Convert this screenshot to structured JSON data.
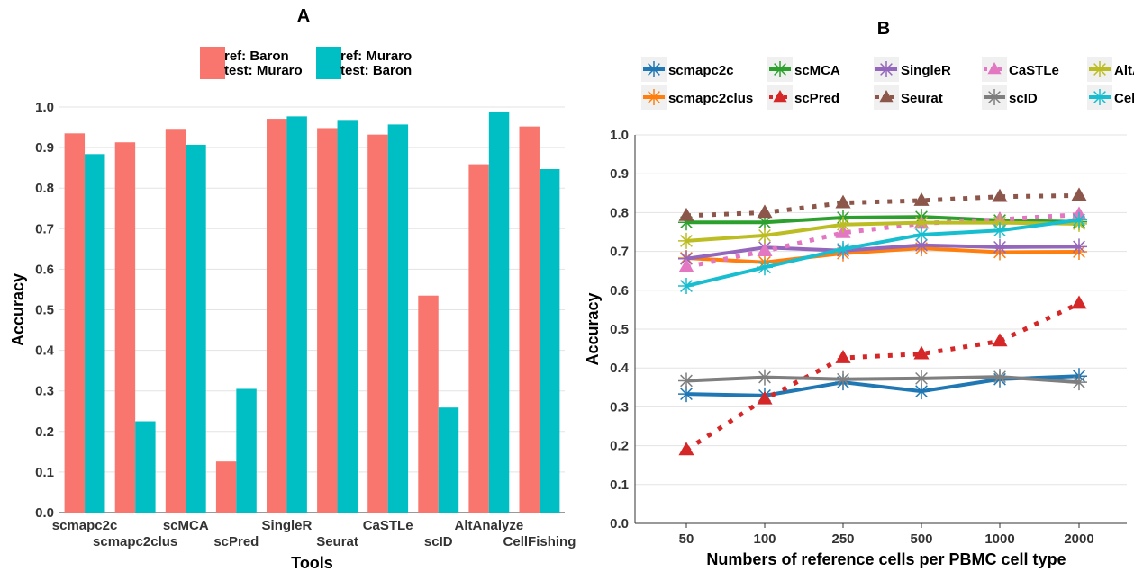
{
  "colors": {
    "baron_muraro": "#F8766D",
    "muraro_baron": "#00BFC4",
    "grid": "#e3e3e3",
    "axis": "#333333"
  },
  "chart_data": [
    {
      "type": "bar",
      "panel": "A",
      "xlabel": "Tools",
      "ylabel": "Accuracy",
      "ylim": [
        0,
        1.0
      ],
      "yticks": [
        "0.0",
        "0.1",
        "0.2",
        "0.3",
        "0.4",
        "0.5",
        "0.6",
        "0.7",
        "0.8",
        "0.9",
        "1.0"
      ],
      "grid": true,
      "legend_position": "top",
      "categories": [
        "scmapc2c",
        "scmapc2clus",
        "scMCA",
        "scPred",
        "SingleR",
        "Seurat",
        "CaSTLe",
        "scID",
        "AltAnalyze",
        "CellFishing"
      ],
      "series": [
        {
          "name": "ref: Baron test: Muraro",
          "label_line1": "ref: Baron",
          "label_line2": "test: Muraro",
          "color": "#F8766D",
          "values": [
            0.935,
            0.913,
            0.944,
            0.126,
            0.971,
            0.948,
            0.932,
            0.535,
            0.859,
            0.952
          ]
        },
        {
          "name": "ref: Muraro test: Baron",
          "label_line1": "ref: Muraro",
          "label_line2": "test: Baron",
          "color": "#00BFC4",
          "values": [
            0.884,
            0.225,
            0.907,
            0.305,
            0.977,
            0.966,
            0.957,
            0.259,
            0.989,
            0.847
          ]
        }
      ]
    },
    {
      "type": "line",
      "panel": "B",
      "xlabel": "Numbers of reference cells per PBMC cell type",
      "ylabel": "Accuracy",
      "ylim": [
        0,
        1.0
      ],
      "yticks": [
        "0.0",
        "0.1",
        "0.2",
        "0.3",
        "0.4",
        "0.5",
        "0.6",
        "0.7",
        "0.8",
        "0.9",
        "1.0"
      ],
      "grid": true,
      "legend_position": "top",
      "x": [
        "50",
        "100",
        "250",
        "500",
        "1000",
        "2000"
      ],
      "series": [
        {
          "name": "scmapc2c",
          "color": "#1F77B4",
          "marker": "star",
          "dash": "solid",
          "values": [
            0.333,
            0.329,
            0.363,
            0.34,
            0.371,
            0.379
          ]
        },
        {
          "name": "scmapc2clus",
          "color": "#FF7F0E",
          "marker": "star",
          "dash": "solid",
          "values": [
            0.683,
            0.672,
            0.695,
            0.708,
            0.698,
            0.699
          ]
        },
        {
          "name": "scMCA",
          "color": "#2CA02C",
          "marker": "star",
          "dash": "solid",
          "values": [
            0.775,
            0.775,
            0.787,
            0.789,
            0.78,
            0.776
          ]
        },
        {
          "name": "scPred",
          "color": "#D62728",
          "marker": "triangle",
          "dash": "dotted",
          "values": [
            0.189,
            0.32,
            0.426,
            0.436,
            0.469,
            0.566
          ]
        },
        {
          "name": "SingleR",
          "color": "#9467BD",
          "marker": "star",
          "dash": "solid",
          "values": [
            0.681,
            0.71,
            0.702,
            0.716,
            0.711,
            0.712
          ]
        },
        {
          "name": "Seurat",
          "color": "#8C564B",
          "marker": "triangle",
          "dash": "dotted",
          "values": [
            0.792,
            0.8,
            0.825,
            0.831,
            0.841,
            0.844
          ]
        },
        {
          "name": "CaSTLe",
          "color": "#E377C2",
          "marker": "triangle",
          "dash": "dotted",
          "values": [
            0.66,
            0.701,
            0.748,
            0.772,
            0.782,
            0.795
          ]
        },
        {
          "name": "scID",
          "color": "#7F7F7F",
          "marker": "star",
          "dash": "solid",
          "values": [
            0.367,
            0.376,
            0.371,
            0.373,
            0.377,
            0.363
          ]
        },
        {
          "name": "AltAnalyze",
          "color": "#BCBD22",
          "marker": "star",
          "dash": "solid",
          "values": [
            0.727,
            0.741,
            0.769,
            0.774,
            0.774,
            0.771
          ]
        },
        {
          "name": "CellFishing",
          "color": "#17BECF",
          "marker": "star",
          "dash": "solid",
          "values": [
            0.611,
            0.659,
            0.706,
            0.743,
            0.754,
            0.781
          ]
        }
      ]
    }
  ]
}
